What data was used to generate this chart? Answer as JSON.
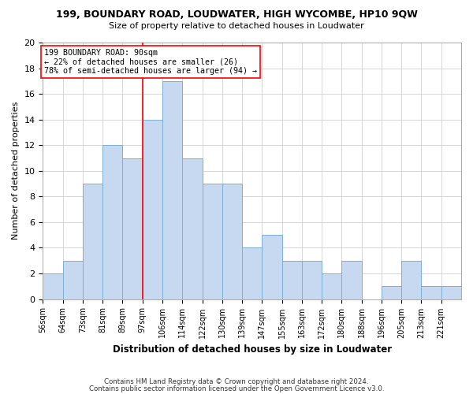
{
  "title": "199, BOUNDARY ROAD, LOUDWATER, HIGH WYCOMBE, HP10 9QW",
  "subtitle": "Size of property relative to detached houses in Loudwater",
  "xlabel": "Distribution of detached houses by size in Loudwater",
  "ylabel": "Number of detached properties",
  "bin_labels": [
    "56sqm",
    "64sqm",
    "73sqm",
    "81sqm",
    "89sqm",
    "97sqm",
    "106sqm",
    "114sqm",
    "122sqm",
    "130sqm",
    "139sqm",
    "147sqm",
    "155sqm",
    "163sqm",
    "172sqm",
    "180sqm",
    "188sqm",
    "196sqm",
    "205sqm",
    "213sqm",
    "221sqm"
  ],
  "counts": [
    2,
    3,
    9,
    12,
    11,
    14,
    17,
    11,
    9,
    9,
    4,
    5,
    3,
    3,
    2,
    3,
    0,
    1,
    3,
    1,
    1
  ],
  "bar_facecolor": "#c6d9f0",
  "bar_edgecolor": "#7bafd4",
  "grid_color": "#d0d0d0",
  "property_bin_index": 4,
  "property_line_color": "red",
  "annotation_text": "199 BOUNDARY ROAD: 90sqm\n← 22% of detached houses are smaller (26)\n78% of semi-detached houses are larger (94) →",
  "annotation_box_edgecolor": "red",
  "annotation_box_facecolor": "white",
  "ylim": [
    0,
    20
  ],
  "yticks": [
    0,
    2,
    4,
    6,
    8,
    10,
    12,
    14,
    16,
    18,
    20
  ],
  "footnote1": "Contains HM Land Registry data © Crown copyright and database right 2024.",
  "footnote2": "Contains public sector information licensed under the Open Government Licence v3.0."
}
